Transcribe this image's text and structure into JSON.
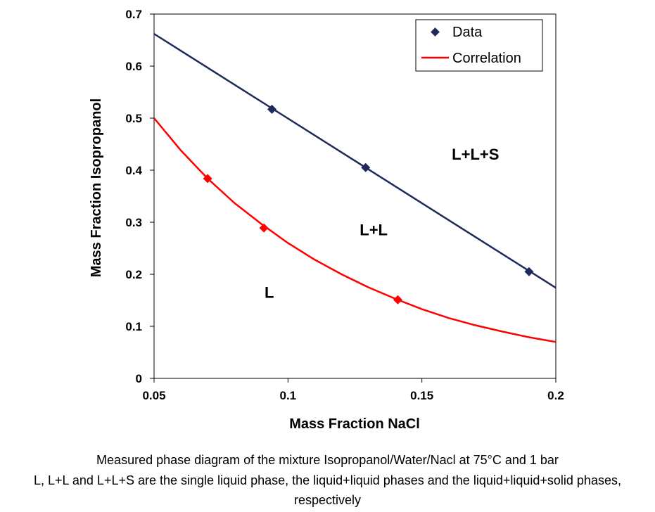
{
  "chart_data": {
    "type": "scatter",
    "xlabel": "Mass Fraction NaCl",
    "ylabel": "Mass Fraction Isopropanol",
    "xlim": [
      0.05,
      0.2
    ],
    "ylim": [
      0,
      0.7
    ],
    "x_ticks": [
      0.05,
      0.1,
      0.15,
      0.2
    ],
    "x_tick_labels": [
      "0.05",
      "0.1",
      "0.15",
      "0.2"
    ],
    "y_ticks": [
      0,
      0.1,
      0.2,
      0.3,
      0.4,
      0.5,
      0.6,
      0.7
    ],
    "y_tick_labels": [
      "0",
      "0.1",
      "0.2",
      "0.3",
      "0.4",
      "0.5",
      "0.6",
      "0.7"
    ],
    "grid": false,
    "legend_position": "top-right",
    "legend": {
      "data_label": "Data",
      "correlation_label": "Correlation"
    },
    "series": [
      {
        "name": "Data",
        "style": "markers",
        "marker": "diamond",
        "color": "#1f2a5c",
        "x": [
          0.094,
          0.129,
          0.19
        ],
        "y": [
          0.517,
          0.405,
          0.205
        ]
      },
      {
        "style": "line",
        "color": "#1f2a5c",
        "x": [
          0.05,
          0.2
        ],
        "y": [
          0.662,
          0.174
        ]
      },
      {
        "style": "markers",
        "marker": "diamond",
        "color": "#ff0000",
        "x": [
          0.07,
          0.091,
          0.141
        ],
        "y": [
          0.384,
          0.289,
          0.151
        ]
      },
      {
        "name": "Correlation",
        "style": "line",
        "color": "#ff0000",
        "x": [
          0.05,
          0.06,
          0.07,
          0.08,
          0.09,
          0.1,
          0.11,
          0.12,
          0.13,
          0.141,
          0.15,
          0.16,
          0.17,
          0.18,
          0.19,
          0.2
        ],
        "y": [
          0.5,
          0.438,
          0.384,
          0.337,
          0.297,
          0.26,
          0.228,
          0.2,
          0.175,
          0.151,
          0.133,
          0.116,
          0.102,
          0.09,
          0.079,
          0.07
        ]
      }
    ],
    "annotations": [
      {
        "text": "L",
        "x": 0.093,
        "y": 0.155
      },
      {
        "text": "L+L",
        "x": 0.132,
        "y": 0.275
      },
      {
        "text": "L+L+S",
        "x": 0.17,
        "y": 0.42
      }
    ]
  },
  "caption": {
    "line1": "Measured phase diagram of the mixture Isopropanol/Water/Nacl at 75°C and 1 bar",
    "line2": "L, L+L and L+L+S are the single liquid phase, the liquid+liquid phases and the liquid+liquid+solid phases,",
    "line3": "respectively"
  }
}
